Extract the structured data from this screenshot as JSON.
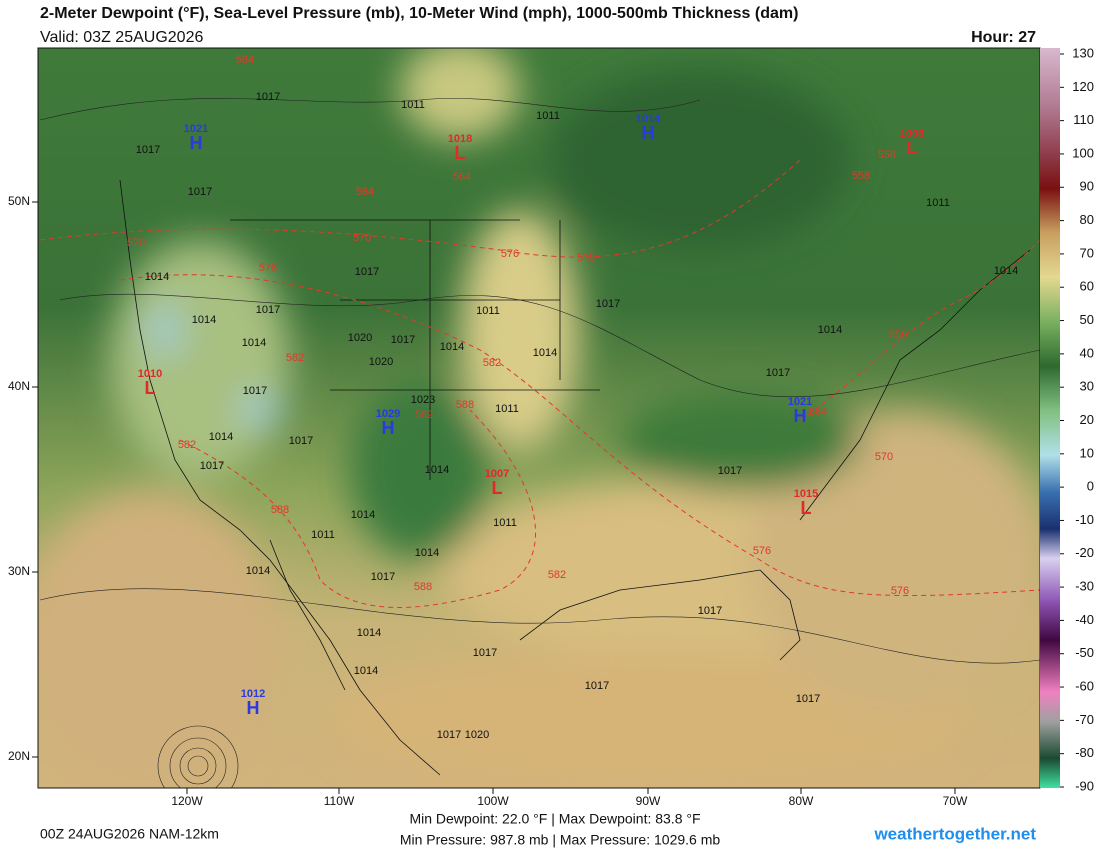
{
  "header": {
    "title": "2-Meter Dewpoint (°F), Sea-Level Pressure (mb), 10-Meter Wind (mph), 1000-500mb Thickness (dam)",
    "valid": "Valid: 03Z 25AUG2026",
    "hour": "Hour: 27"
  },
  "map": {
    "longitude_labels": [
      "120W",
      "110W",
      "100W",
      "90W",
      "80W",
      "70W"
    ],
    "latitude_labels": [
      "50N",
      "40N",
      "30N",
      "20N"
    ],
    "pressure_centers": [
      {
        "type": "H",
        "value": "1021"
      },
      {
        "type": "L",
        "value": "1018"
      },
      {
        "type": "H",
        "value": "1014"
      },
      {
        "type": "L",
        "value": "1008"
      },
      {
        "type": "L",
        "value": "1010"
      },
      {
        "type": "H",
        "value": "1029"
      },
      {
        "type": "L",
        "value": "1007"
      },
      {
        "type": "H",
        "value": "1021"
      },
      {
        "type": "L",
        "value": "1015"
      },
      {
        "type": "H",
        "value": "1012"
      }
    ],
    "isobar_labels": [
      "1017",
      "1011",
      "1011",
      "1017",
      "1017",
      "1014",
      "1017",
      "1014",
      "1017",
      "1011",
      "1017",
      "1014",
      "1020",
      "1017",
      "1014",
      "1014",
      "1014",
      "1020",
      "1017",
      "1023",
      "1011",
      "1017",
      "1014",
      "1017",
      "1017",
      "1014",
      "1017",
      "1011",
      "1014",
      "1011",
      "1014",
      "1017",
      "1014",
      "1014",
      "1014",
      "1017",
      "1017",
      "1017",
      "1017",
      "1017",
      "1020",
      "1014",
      "1011"
    ],
    "thickness_labels": [
      "564",
      "564",
      "564",
      "570",
      "570",
      "576",
      "576",
      "570",
      "582",
      "582",
      "588",
      "582",
      "582",
      "588",
      "588",
      "582",
      "576",
      "570",
      "564",
      "558",
      "558",
      "558",
      "576"
    ]
  },
  "colorbar": {
    "ticks": [
      130,
      120,
      110,
      100,
      90,
      80,
      70,
      60,
      50,
      40,
      30,
      20,
      10,
      0,
      -10,
      -20,
      -30,
      -40,
      -50,
      -60,
      -70,
      -80,
      -90
    ]
  },
  "footer": {
    "run": "00Z 24AUG2026 NAM-12km",
    "dewpoint_range": "Min Dewpoint:  22.0 °F | Max Dewpoint:  83.8 °F",
    "pressure_range": "Min Pressure: 987.8 mb | Max Pressure: 1029.6 mb",
    "credit": "weathertogether.net"
  }
}
